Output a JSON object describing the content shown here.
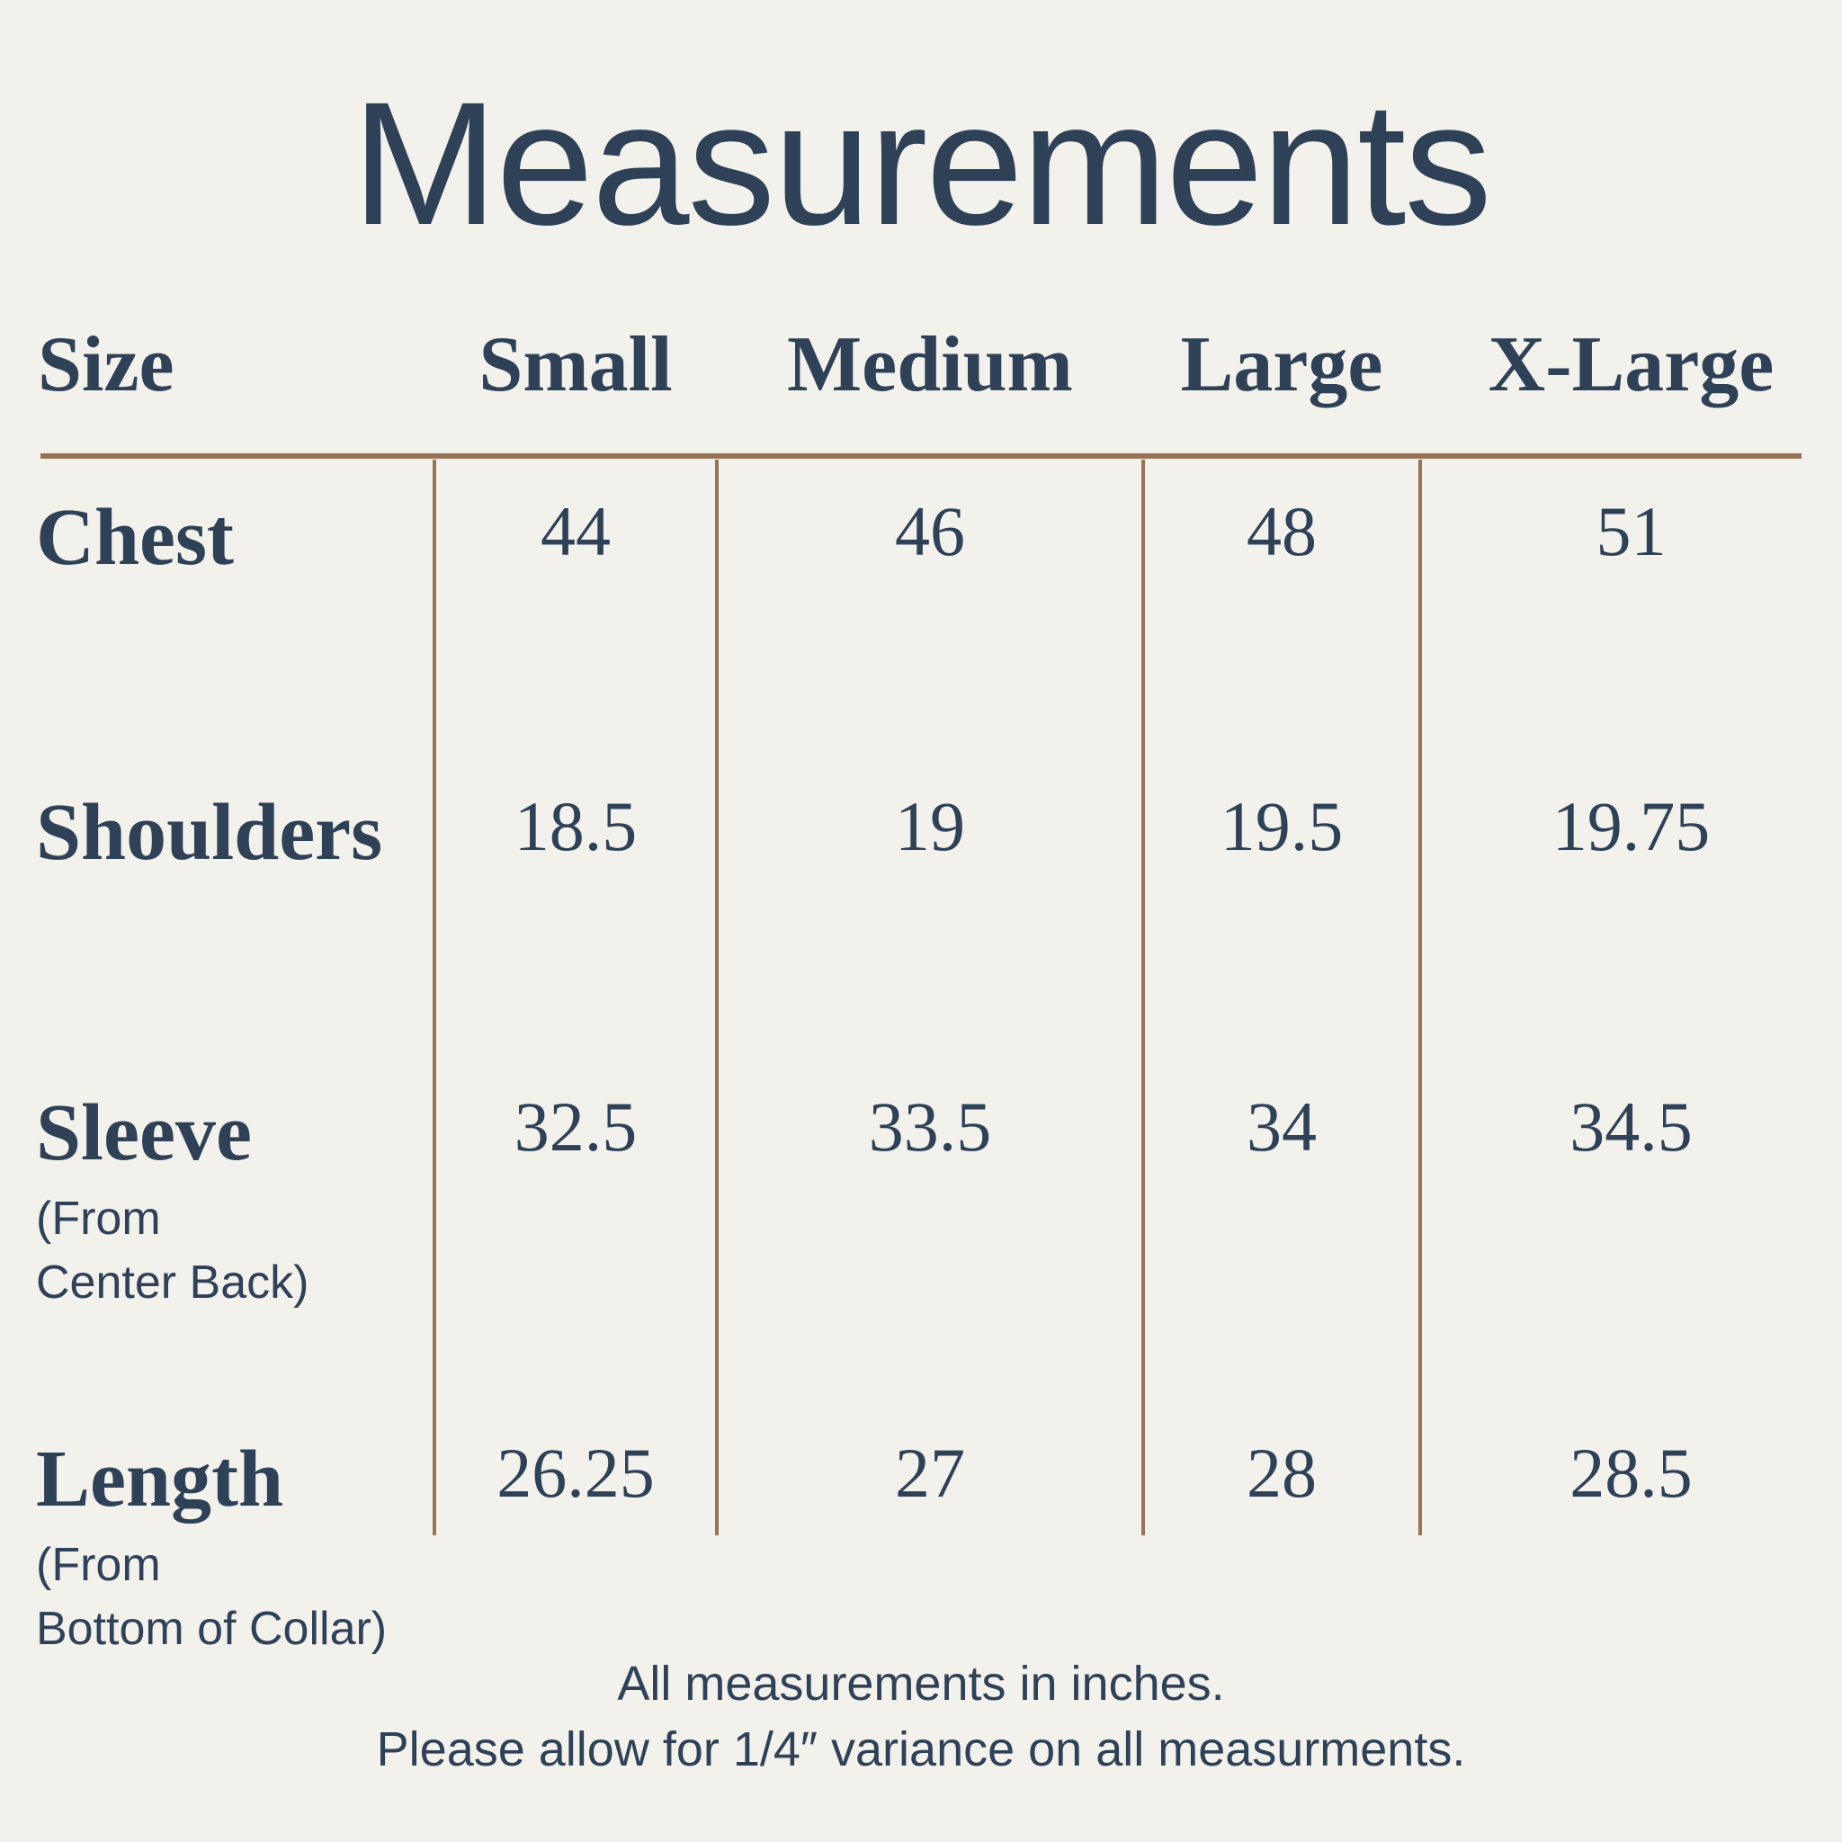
{
  "title": "Measurements",
  "colors": {
    "background": "#f3f1ec",
    "text_navy": "#2e4157",
    "line_brown": "#9a7254"
  },
  "table": {
    "size_header": "Size",
    "columns": [
      "Small",
      "Medium",
      "Large",
      "X-Large"
    ],
    "rows": [
      {
        "label": "Chest",
        "sub": "",
        "values": [
          "44",
          "46",
          "48",
          "51"
        ]
      },
      {
        "label": "Shoulders",
        "sub": "",
        "values": [
          "18.5",
          "19",
          "19.5",
          "19.75"
        ]
      },
      {
        "label": "Sleeve",
        "sub": "(From\nCenter Back)",
        "values": [
          "32.5",
          "33.5",
          "34",
          "34.5"
        ]
      },
      {
        "label": "Length",
        "sub": "(From\nBottom of Collar)",
        "values": [
          "26.25",
          "27",
          "28",
          "28.5"
        ]
      }
    ]
  },
  "footer": {
    "line1": "All measurements in inches.",
    "line2": "Please allow for 1/4″ variance on all measurments."
  },
  "chart_data": {
    "type": "table",
    "title": "Measurements",
    "units": "inches",
    "columns": [
      "Size",
      "Small",
      "Medium",
      "Large",
      "X-Large"
    ],
    "rows": [
      {
        "label": "Chest",
        "values": [
          44,
          46,
          48,
          51
        ]
      },
      {
        "label": "Shoulders",
        "values": [
          18.5,
          19,
          19.5,
          19.75
        ]
      },
      {
        "label": "Sleeve (From Center Back)",
        "values": [
          32.5,
          33.5,
          34,
          34.5
        ]
      },
      {
        "label": "Length (From Bottom of Collar)",
        "values": [
          26.25,
          27,
          28,
          28.5
        ]
      }
    ],
    "notes": [
      "All measurements in inches.",
      "Please allow for 1/4″ variance on all measurments."
    ],
    "layout": "header row on top, brown horizontal divider under header, brown vertical dividers between value columns, footnotes centered at bottom"
  }
}
